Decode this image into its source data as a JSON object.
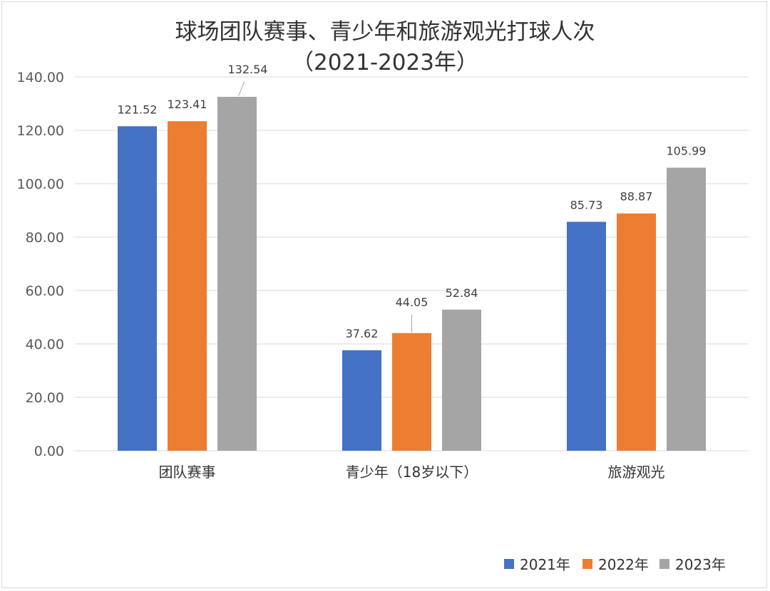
{
  "chart_data": {
    "type": "bar",
    "title": "球场团队赛事、青少年和旅游观光打球人次",
    "subtitle": "（2021-2023年）",
    "categories": [
      "团队赛事",
      "青少年（18岁以下）",
      "旅游观光"
    ],
    "series": [
      {
        "name": "2021年",
        "color": "#4472C4",
        "values": [
          121.52,
          37.62,
          85.73
        ]
      },
      {
        "name": "2022年",
        "color": "#ED7D31",
        "values": [
          123.41,
          44.05,
          88.87
        ]
      },
      {
        "name": "2023年",
        "color": "#A5A5A5",
        "values": [
          132.54,
          52.84,
          105.99
        ]
      }
    ],
    "ylim": [
      0,
      140
    ],
    "yticks": [
      "0.00",
      "20.00",
      "40.00",
      "60.00",
      "80.00",
      "100.00",
      "120.00",
      "140.00"
    ],
    "xlabel": "",
    "ylabel": "",
    "grid": true,
    "legend": "bottom-right"
  }
}
